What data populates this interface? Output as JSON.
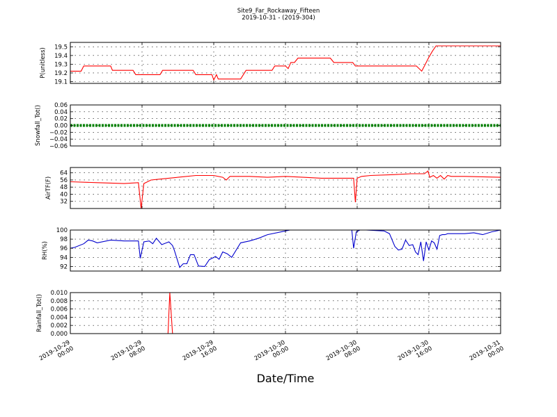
{
  "title": "Site9_Far_Rockaway_Fifteen",
  "subtitle": "2019-10-31 - (2019-304)",
  "xlabel": "Date/Time",
  "x_ticks": [
    {
      "label_date": "2019-10-29",
      "label_time": "00:00",
      "hour": 0
    },
    {
      "label_date": "2019-10-29",
      "label_time": "08:00",
      "hour": 8
    },
    {
      "label_date": "2019-10-29",
      "label_time": "16:00",
      "hour": 16
    },
    {
      "label_date": "2019-10-30",
      "label_time": "00:00",
      "hour": 24
    },
    {
      "label_date": "2019-10-30",
      "label_time": "08:00",
      "hour": 32
    },
    {
      "label_date": "2019-10-30",
      "label_time": "16:00",
      "hour": 40
    },
    {
      "label_date": "2019-10-31",
      "label_time": "00:00",
      "hour": 48
    }
  ],
  "chart_data": [
    {
      "type": "line",
      "ylabel": "P(unitless)",
      "ylim": [
        19.08,
        19.55
      ],
      "yticks": [
        19.1,
        19.2,
        19.3,
        19.4,
        19.5
      ],
      "ytick_labels": [
        "19.1",
        "19.2",
        "19.3",
        "19.4",
        "19.5"
      ],
      "color": "#ff0000",
      "xlim": [
        0,
        48
      ],
      "x": [
        0,
        1.2,
        1.5,
        4.5,
        4.7,
        7,
        7.3,
        10,
        10.3,
        13.7,
        14,
        15.8,
        16,
        16.3,
        16.5,
        19,
        19.3,
        19.6,
        22.5,
        22.8,
        24,
        24.3,
        24.6,
        25,
        25.4,
        27,
        27.3,
        29,
        29.4,
        31.5,
        31.8,
        32.2,
        38.6,
        39.2,
        39.5,
        40,
        40.4,
        40.8,
        41,
        48
      ],
      "y": [
        19.22,
        19.22,
        19.28,
        19.28,
        19.23,
        19.23,
        19.18,
        19.18,
        19.23,
        19.23,
        19.18,
        19.18,
        19.12,
        19.18,
        19.13,
        19.13,
        19.18,
        19.23,
        19.23,
        19.28,
        19.28,
        19.25,
        19.32,
        19.32,
        19.37,
        19.37,
        19.37,
        19.37,
        19.32,
        19.32,
        19.28,
        19.28,
        19.28,
        19.22,
        19.28,
        19.38,
        19.45,
        19.51,
        19.51,
        19.51
      ]
    },
    {
      "type": "line",
      "ylabel": "Snowfall_Tot()",
      "ylim": [
        -0.06,
        0.06
      ],
      "yticks": [
        -0.06,
        -0.04,
        -0.02,
        0.0,
        0.02,
        0.04,
        0.06
      ],
      "ytick_labels": [
        "−0.06",
        "−0.04",
        "−0.02",
        "0.00",
        "0.02",
        "0.04",
        "0.06"
      ],
      "color": "#008000",
      "xlim": [
        0,
        48
      ],
      "x": [
        0,
        48
      ],
      "y": [
        0,
        0
      ]
    },
    {
      "type": "line",
      "ylabel": "AirTF(F)",
      "ylim": [
        24,
        70
      ],
      "yticks": [
        32,
        40,
        48,
        56,
        64
      ],
      "ytick_labels": [
        "32",
        "40",
        "48",
        "56",
        "64"
      ],
      "color": "#ff0000",
      "xlim": [
        0,
        48
      ],
      "x": [
        0,
        3,
        6,
        7.6,
        7.9,
        8.2,
        9,
        10,
        12,
        14,
        16,
        17,
        17.4,
        17.8,
        20,
        22,
        24,
        26,
        28,
        31.6,
        31.8,
        32,
        32.5,
        33.5,
        36,
        38,
        39.5,
        39.9,
        40.1,
        40.5,
        40.9,
        41.3,
        41.7,
        42.1,
        42.5,
        44,
        48
      ],
      "y": [
        54,
        53,
        52,
        53,
        24,
        52,
        56,
        57,
        59,
        61,
        61,
        59,
        56,
        60,
        60,
        59,
        60,
        59,
        58,
        58,
        31,
        58,
        60,
        61,
        62,
        63,
        63,
        66,
        59,
        61,
        58,
        61,
        57,
        61,
        60,
        60,
        59
      ]
    },
    {
      "type": "line",
      "ylabel": "RH(%)",
      "ylim": [
        91,
        100
      ],
      "yticks": [
        92,
        94,
        96,
        98,
        100
      ],
      "ytick_labels": [
        "92",
        "94",
        "96",
        "98",
        "100"
      ],
      "color": "#0000cd",
      "xlim": [
        0,
        48
      ],
      "x": [
        0,
        0.5,
        1.5,
        2,
        2.5,
        3,
        4.5,
        6,
        7.6,
        7.8,
        8.2,
        8.8,
        9.2,
        9.6,
        10.2,
        11,
        11.4,
        11.6,
        12.2,
        12.6,
        13,
        13.4,
        13.8,
        14.3,
        15,
        15.5,
        16.2,
        16.6,
        17,
        17.5,
        18,
        19,
        20,
        21,
        21.5,
        22,
        24,
        24.5,
        31.4,
        31.6,
        31.9,
        32.3,
        33,
        35,
        35.6,
        36.2,
        36.6,
        37,
        37.4,
        37.8,
        38.2,
        38.5,
        38.8,
        39.1,
        39.4,
        39.7,
        40,
        40.3,
        40.6,
        40.9,
        41.2,
        41.5,
        41.8,
        42.1,
        42.6,
        44,
        45,
        46,
        47,
        48
      ],
      "y": [
        96,
        96.2,
        97,
        97.8,
        97.6,
        97.2,
        97.8,
        97.6,
        97.6,
        93.8,
        97.4,
        97.6,
        97,
        98.2,
        96.8,
        97.4,
        96.6,
        95.6,
        91.8,
        92.6,
        92.6,
        94.6,
        94.6,
        92.1,
        92,
        93.5,
        94.2,
        93.6,
        95.2,
        94.8,
        94,
        97.2,
        97.6,
        98.2,
        98.6,
        99,
        99.8,
        100,
        100,
        96,
        99.6,
        100,
        100,
        99.8,
        99.2,
        96.4,
        95.6,
        95.8,
        97.8,
        96.6,
        96.8,
        95.2,
        94.6,
        97.4,
        93.2,
        97.4,
        95.6,
        97.6,
        97.2,
        95.8,
        98.8,
        99,
        99,
        99.2,
        99.2,
        99.2,
        99.4,
        99,
        99.6,
        100
      ]
    },
    {
      "type": "line",
      "ylabel": "Rainfall_Tot()",
      "ylim": [
        0.0,
        0.01
      ],
      "yticks": [
        0.0,
        0.002,
        0.004,
        0.006,
        0.008,
        0.01
      ],
      "ytick_labels": [
        "0.000",
        "0.002",
        "0.004",
        "0.006",
        "0.008",
        "0.010"
      ],
      "color": "#ff0000",
      "xlim": [
        0,
        48
      ],
      "x": [
        0,
        10.9,
        11.1,
        11.4,
        48
      ],
      "y": [
        0,
        0,
        0.01,
        0,
        0
      ]
    }
  ]
}
